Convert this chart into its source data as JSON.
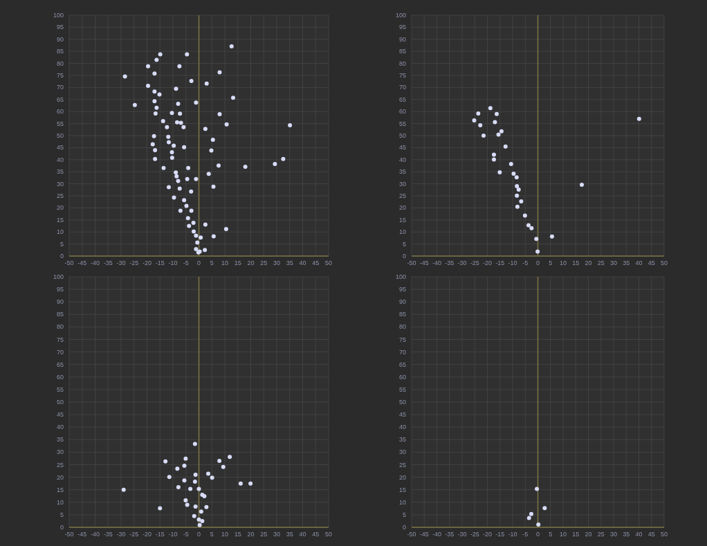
{
  "chart_data": [
    {
      "type": "scatter",
      "color": "#d8dcf8",
      "marker": "circle",
      "grid": true,
      "xlim": [
        -50,
        50
      ],
      "ylim": [
        0,
        100
      ],
      "xticks": [
        -50,
        -45,
        -40,
        -35,
        -30,
        -25,
        -20,
        -15,
        -10,
        -5,
        0,
        5,
        10,
        15,
        20,
        25,
        30,
        35,
        40,
        45,
        50
      ],
      "yticks": [
        0,
        5,
        10,
        15,
        20,
        25,
        30,
        35,
        40,
        45,
        50,
        55,
        60,
        65,
        70,
        75,
        80,
        85,
        90,
        95,
        100
      ],
      "ref_lines": [
        {
          "axis": "x",
          "value": 0,
          "color": "#7d7445"
        }
      ],
      "x": [
        12.6,
        -14.9,
        -4.6,
        -16.3,
        -19.6,
        -7.5,
        -17.1,
        8.0,
        -28.5,
        -2.9,
        3.0,
        -19.6,
        -8.8,
        -17.1,
        -15.2,
        13.2,
        -24.7,
        -17.1,
        -16.3,
        -8.0,
        -1.1,
        -16.7,
        -10.4,
        -7.3,
        8.0,
        -13.8,
        -8.4,
        -6.9,
        10.7,
        35.1,
        -12.3,
        -5.9,
        2.5,
        -17.3,
        -11.8,
        5.4,
        -11.6,
        -17.8,
        -9.7,
        -5.7,
        -16.9,
        4.8,
        -10.4,
        -10.3,
        -16.9,
        32.5,
        29.3,
        7.6,
        17.9,
        -13.6,
        -4.1,
        -8.9,
        3.8,
        -8.6,
        -4.5,
        -1.1,
        -8.0,
        -11.6,
        -7.4,
        5.6,
        -3.0,
        -9.6,
        -5.7,
        -4.8,
        -7.1,
        -2.9,
        -4.2,
        -2.1,
        -3.8,
        2.5,
        10.5,
        -2.0,
        -1.1,
        0.7,
        5.7,
        -0.6,
        -1.1,
        0.3,
        2.3,
        -0.2
      ],
      "values": [
        87.1,
        83.8,
        83.8,
        81.5,
        78.8,
        78.8,
        75.8,
        76.3,
        74.6,
        72.7,
        71.6,
        70.7,
        69.5,
        68.3,
        67.1,
        65.7,
        62.7,
        64.3,
        61.6,
        63.2,
        63.7,
        59.2,
        59.4,
        59.1,
        58.9,
        56.0,
        55.5,
        55.3,
        54.7,
        54.3,
        53.5,
        53.5,
        52.8,
        49.8,
        49.5,
        48.3,
        47.3,
        46.4,
        45.8,
        45.2,
        44.0,
        43.8,
        43.1,
        40.8,
        40.3,
        40.3,
        38.2,
        37.6,
        37.1,
        36.6,
        36.6,
        34.7,
        34.1,
        33.1,
        32.0,
        32.0,
        31.2,
        28.6,
        28.0,
        28.8,
        26.8,
        24.3,
        23.2,
        20.8,
        18.8,
        18.8,
        15.7,
        13.8,
        12.5,
        13.1,
        11.2,
        10.2,
        8.5,
        7.7,
        8.2,
        5.6,
        2.9,
        1.9,
        2.5,
        1.5
      ]
    },
    {
      "type": "scatter",
      "color": "#d8dcf8",
      "marker": "circle",
      "grid": true,
      "xlim": [
        -50,
        50
      ],
      "ylim": [
        0,
        100
      ],
      "xticks": [
        -50,
        -45,
        -40,
        -35,
        -30,
        -25,
        -20,
        -15,
        -10,
        -5,
        0,
        5,
        10,
        15,
        20,
        25,
        30,
        35,
        40,
        45,
        50
      ],
      "yticks": [
        0,
        5,
        10,
        15,
        20,
        25,
        30,
        35,
        40,
        45,
        50,
        55,
        60,
        65,
        70,
        75,
        80,
        85,
        90,
        95,
        100
      ],
      "ref_lines": [
        {
          "axis": "x",
          "value": 0,
          "color": "#7d7445"
        }
      ],
      "x": [
        40.1,
        -18.8,
        -23.6,
        -16.3,
        -25.2,
        -17.0,
        -22.8,
        -14.4,
        -15.6,
        -21.5,
        -12.8,
        -17.4,
        -17.4,
        -10.6,
        -15.1,
        -9.6,
        -8.4,
        17.4,
        -8.3,
        -7.6,
        -8.3,
        -6.6,
        -8.1,
        -5.1,
        -3.7,
        -2.5,
        -0.6,
        5.6,
        -0.1
      ],
      "values": [
        57.0,
        61.4,
        59.2,
        59.0,
        56.3,
        55.6,
        54.3,
        51.8,
        50.4,
        50.0,
        45.5,
        42.1,
        40.1,
        38.2,
        34.8,
        34.2,
        32.7,
        29.6,
        29.0,
        27.6,
        25.1,
        22.7,
        20.5,
        16.8,
        12.8,
        11.6,
        7.1,
        8.1,
        1.9
      ]
    },
    {
      "type": "scatter",
      "color": "#d8dcf8",
      "marker": "circle",
      "grid": true,
      "xlim": [
        -50,
        50
      ],
      "ylim": [
        0,
        100
      ],
      "xticks": [
        -50,
        -45,
        -40,
        -35,
        -30,
        -25,
        -20,
        -15,
        -10,
        -5,
        0,
        5,
        10,
        15,
        20,
        25,
        30,
        35,
        40,
        45,
        50
      ],
      "yticks": [
        0,
        5,
        10,
        15,
        20,
        25,
        30,
        35,
        40,
        45,
        50,
        55,
        60,
        65,
        70,
        75,
        80,
        85,
        90,
        95,
        100
      ],
      "ref_lines": [
        {
          "axis": "x",
          "value": 0,
          "color": "#7d7445"
        }
      ],
      "x": [
        -1.5,
        -12.9,
        -5.1,
        -5.6,
        -8.3,
        7.9,
        11.9,
        9.4,
        -11.4,
        -1.3,
        3.6,
        5.1,
        -5.6,
        -1.5,
        16.1,
        19.9,
        -7.9,
        -29.0,
        -3.3,
        0,
        1.3,
        2.1,
        -5.1,
        -4.5,
        -1.3,
        2.9,
        -15.0,
        0.9,
        -1.8,
        0,
        1.3,
        0.3
      ],
      "values": [
        33.3,
        26.3,
        27.4,
        24.6,
        23.4,
        26.5,
        28.1,
        24.1,
        20.1,
        21.0,
        21.4,
        19.8,
        18.7,
        18.2,
        17.5,
        17.5,
        16.0,
        15.0,
        15.3,
        15.3,
        13.0,
        12.4,
        10.8,
        9.0,
        8.3,
        8.1,
        7.6,
        6.3,
        4.5,
        3.1,
        2.5,
        0.9
      ]
    },
    {
      "type": "scatter",
      "color": "#d8dcf8",
      "marker": "circle",
      "grid": true,
      "xlim": [
        -50,
        50
      ],
      "ylim": [
        0,
        100
      ],
      "xticks": [
        -50,
        -45,
        -40,
        -35,
        -30,
        -25,
        -20,
        -15,
        -10,
        -5,
        0,
        5,
        10,
        15,
        20,
        25,
        30,
        35,
        40,
        45,
        50
      ],
      "yticks": [
        0,
        5,
        10,
        15,
        20,
        25,
        30,
        35,
        40,
        45,
        50,
        55,
        60,
        65,
        70,
        75,
        80,
        85,
        90,
        95,
        100
      ],
      "ref_lines": [
        {
          "axis": "x",
          "value": 0,
          "color": "#7d7445"
        }
      ],
      "x": [
        -0.4,
        2.7,
        -2.6,
        -3.5,
        0.2
      ],
      "values": [
        15.3,
        7.7,
        5.3,
        3.7,
        1.1
      ]
    }
  ]
}
